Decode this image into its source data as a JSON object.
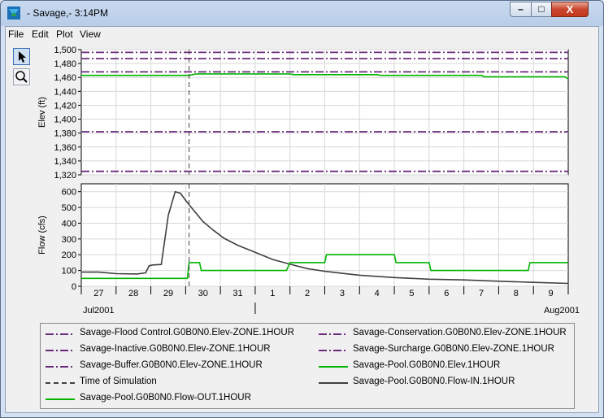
{
  "window": {
    "title": "- Savage,- 3:14PM",
    "minimize_glyph": "–",
    "maximize_glyph": "□",
    "close_glyph": "X"
  },
  "menu": [
    "File",
    "Edit",
    "Plot",
    "View"
  ],
  "tools": [
    {
      "name": "pointer-tool",
      "icon": "arrow-pointer-icon"
    },
    {
      "name": "zoom-tool",
      "icon": "magnifier-icon"
    }
  ],
  "colors": {
    "reference": "#6a2a7a",
    "pool": "#00b400",
    "inflow": "#404040",
    "marker": "#404040"
  },
  "chart_data": [
    {
      "type": "line",
      "ylabel": "Elev (ft)",
      "ylim": [
        1320,
        1500
      ],
      "yticks": [
        "1,500",
        "1,480",
        "1,460",
        "1,440",
        "1,420",
        "1,400",
        "1,380",
        "1,360",
        "1,340",
        "1,320"
      ],
      "x_range": [
        27,
        41
      ],
      "grid": true,
      "series": [
        {
          "name": "Savage-Flood Control.G0B0N0.Elev-ZONE.1HOUR",
          "style": "dashdot",
          "color": "#6a2a7a",
          "x": [
            27,
            41
          ],
          "y": [
            1496,
            1496
          ]
        },
        {
          "name": "Savage-Surcharge.G0B0N0.Elev-ZONE.1HOUR",
          "style": "dashdot",
          "color": "#6a2a7a",
          "x": [
            27,
            41
          ],
          "y": [
            1487,
            1487
          ]
        },
        {
          "name": "Savage-Conservation.G0B0N0.Elev-ZONE.1HOUR",
          "style": "dashdot",
          "color": "#6a2a7a",
          "x": [
            27,
            41
          ],
          "y": [
            1468,
            1468
          ]
        },
        {
          "name": "Savage-Buffer.G0B0N0.Elev-ZONE.1HOUR",
          "style": "dashdot",
          "color": "#6a2a7a",
          "x": [
            27,
            41
          ],
          "y": [
            1382,
            1382
          ]
        },
        {
          "name": "Savage-Inactive.G0B0N0.Elev-ZONE.1HOUR",
          "style": "dashdot",
          "color": "#6a2a7a",
          "x": [
            27,
            41
          ],
          "y": [
            1325,
            1325
          ]
        },
        {
          "name": "Savage-Pool.G0B0N0.Elev.1HOUR",
          "style": "solid",
          "color": "#00b400",
          "x": [
            27,
            30.1,
            30.3,
            33,
            33.1,
            35.5,
            35.6,
            38.5,
            38.6,
            40.9,
            41
          ],
          "y": [
            1463,
            1463,
            1465,
            1465,
            1464,
            1464,
            1463,
            1463,
            1461,
            1461,
            1458
          ]
        }
      ],
      "time_of_simulation_x": 30.1
    },
    {
      "type": "line",
      "ylabel": "Flow (cfs)",
      "ylim": [
        0,
        650
      ],
      "yticks": [
        "600",
        "500",
        "400",
        "300",
        "200",
        "100",
        "0"
      ],
      "x_range": [
        27,
        41
      ],
      "grid": true,
      "series": [
        {
          "name": "Savage-Pool.G0B0N0.Flow-IN.1HOUR",
          "style": "solid",
          "color": "#404040",
          "x": [
            27,
            27.5,
            28.0,
            28.6,
            28.85,
            28.95,
            29.05,
            29.3,
            29.5,
            29.7,
            29.85,
            30.0,
            30.2,
            30.5,
            30.8,
            31.1,
            31.5,
            32.0,
            32.5,
            33.0,
            33.5,
            34.0,
            34.5,
            35.0,
            36.0,
            37.0,
            38.0,
            39.0,
            40.0,
            41.0
          ],
          "y": [
            90,
            90,
            80,
            78,
            85,
            130,
            135,
            138,
            450,
            600,
            590,
            545,
            490,
            410,
            355,
            305,
            260,
            215,
            170,
            140,
            112,
            95,
            82,
            70,
            55,
            45,
            40,
            32,
            25,
            18
          ]
        },
        {
          "name": "Savage-Pool.G0B0N0.Flow-OUT.1HOUR",
          "style": "solid",
          "color": "#00b400",
          "x": [
            27,
            30.05,
            30.1,
            30.4,
            30.45,
            32.9,
            33.0,
            34.0,
            34.05,
            36.0,
            36.05,
            37.0,
            37.05,
            39.85,
            39.9,
            41.0
          ],
          "y": [
            50,
            50,
            150,
            150,
            100,
            100,
            150,
            150,
            200,
            200,
            150,
            150,
            100,
            100,
            150,
            150
          ]
        }
      ],
      "time_of_simulation_x": 30.1
    }
  ],
  "x_axis": {
    "day_labels": [
      "27",
      "28",
      "29",
      "30",
      "31",
      "1",
      "2",
      "3",
      "4",
      "5",
      "6",
      "7",
      "8",
      "9"
    ],
    "month_labels": [
      "Jul2001",
      "Aug2001"
    ]
  },
  "legend": [
    {
      "label": "Savage-Flood Control.G0B0N0.Elev-ZONE.1HOUR",
      "style": "dashdot",
      "color": "#6a2a7a"
    },
    {
      "label": "Savage-Conservation.G0B0N0.Elev-ZONE.1HOUR",
      "style": "dashdot",
      "color": "#6a2a7a"
    },
    {
      "label": "Savage-Inactive.G0B0N0.Elev-ZONE.1HOUR",
      "style": "dashdot",
      "color": "#6a2a7a"
    },
    {
      "label": "Savage-Surcharge.G0B0N0.Elev-ZONE.1HOUR",
      "style": "dashdot",
      "color": "#6a2a7a"
    },
    {
      "label": "Savage-Buffer.G0B0N0.Elev-ZONE.1HOUR",
      "style": "dashdot",
      "color": "#6a2a7a"
    },
    {
      "label": "Savage-Pool.G0B0N0.Elev.1HOUR",
      "style": "solid",
      "color": "#00b400"
    },
    {
      "label": "Time of Simulation",
      "style": "dashed",
      "color": "#404040"
    },
    {
      "label": "Savage-Pool.G0B0N0.Flow-IN.1HOUR",
      "style": "solid",
      "color": "#404040"
    },
    {
      "label": "Savage-Pool.G0B0N0.Flow-OUT.1HOUR",
      "style": "solid",
      "color": "#00b400"
    }
  ]
}
